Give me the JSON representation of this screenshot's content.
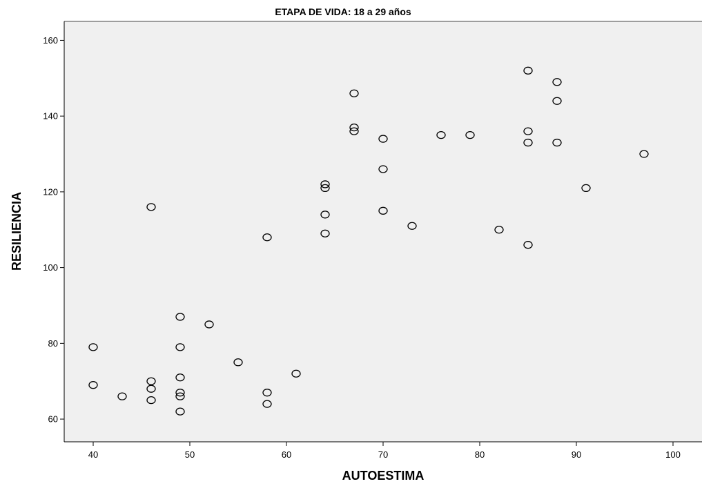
{
  "chart_data": {
    "type": "scatter",
    "title": "ETAPA DE VIDA: 18 a 29 años",
    "xlabel": "AUTOESTIMA",
    "ylabel": "RESILIENCIA",
    "xlim": [
      37,
      103
    ],
    "ylim": [
      54,
      165
    ],
    "xticks": [
      40,
      50,
      60,
      70,
      80,
      90,
      100
    ],
    "yticks": [
      60,
      80,
      100,
      120,
      140,
      160
    ],
    "grid": false,
    "marker": "open-circle",
    "colors": {
      "plot_background": "#f0f0f0",
      "marker": "#000000"
    },
    "points": [
      {
        "x": 40,
        "y": 79
      },
      {
        "x": 40,
        "y": 69
      },
      {
        "x": 43,
        "y": 66
      },
      {
        "x": 46,
        "y": 116
      },
      {
        "x": 46,
        "y": 70
      },
      {
        "x": 46,
        "y": 68
      },
      {
        "x": 46,
        "y": 65
      },
      {
        "x": 49,
        "y": 87
      },
      {
        "x": 49,
        "y": 79
      },
      {
        "x": 49,
        "y": 71
      },
      {
        "x": 49,
        "y": 67
      },
      {
        "x": 49,
        "y": 66
      },
      {
        "x": 49,
        "y": 62
      },
      {
        "x": 52,
        "y": 85
      },
      {
        "x": 55,
        "y": 75
      },
      {
        "x": 58,
        "y": 108
      },
      {
        "x": 58,
        "y": 67
      },
      {
        "x": 58,
        "y": 64
      },
      {
        "x": 61,
        "y": 72
      },
      {
        "x": 64,
        "y": 122
      },
      {
        "x": 64,
        "y": 121
      },
      {
        "x": 64,
        "y": 114
      },
      {
        "x": 64,
        "y": 109
      },
      {
        "x": 67,
        "y": 146
      },
      {
        "x": 67,
        "y": 137
      },
      {
        "x": 67,
        "y": 136
      },
      {
        "x": 70,
        "y": 134
      },
      {
        "x": 70,
        "y": 126
      },
      {
        "x": 70,
        "y": 115
      },
      {
        "x": 73,
        "y": 111
      },
      {
        "x": 76,
        "y": 135
      },
      {
        "x": 79,
        "y": 135
      },
      {
        "x": 82,
        "y": 110
      },
      {
        "x": 85,
        "y": 152
      },
      {
        "x": 85,
        "y": 136
      },
      {
        "x": 85,
        "y": 133
      },
      {
        "x": 85,
        "y": 106
      },
      {
        "x": 88,
        "y": 149
      },
      {
        "x": 88,
        "y": 144
      },
      {
        "x": 88,
        "y": 133
      },
      {
        "x": 91,
        "y": 121
      },
      {
        "x": 97,
        "y": 130
      }
    ]
  }
}
